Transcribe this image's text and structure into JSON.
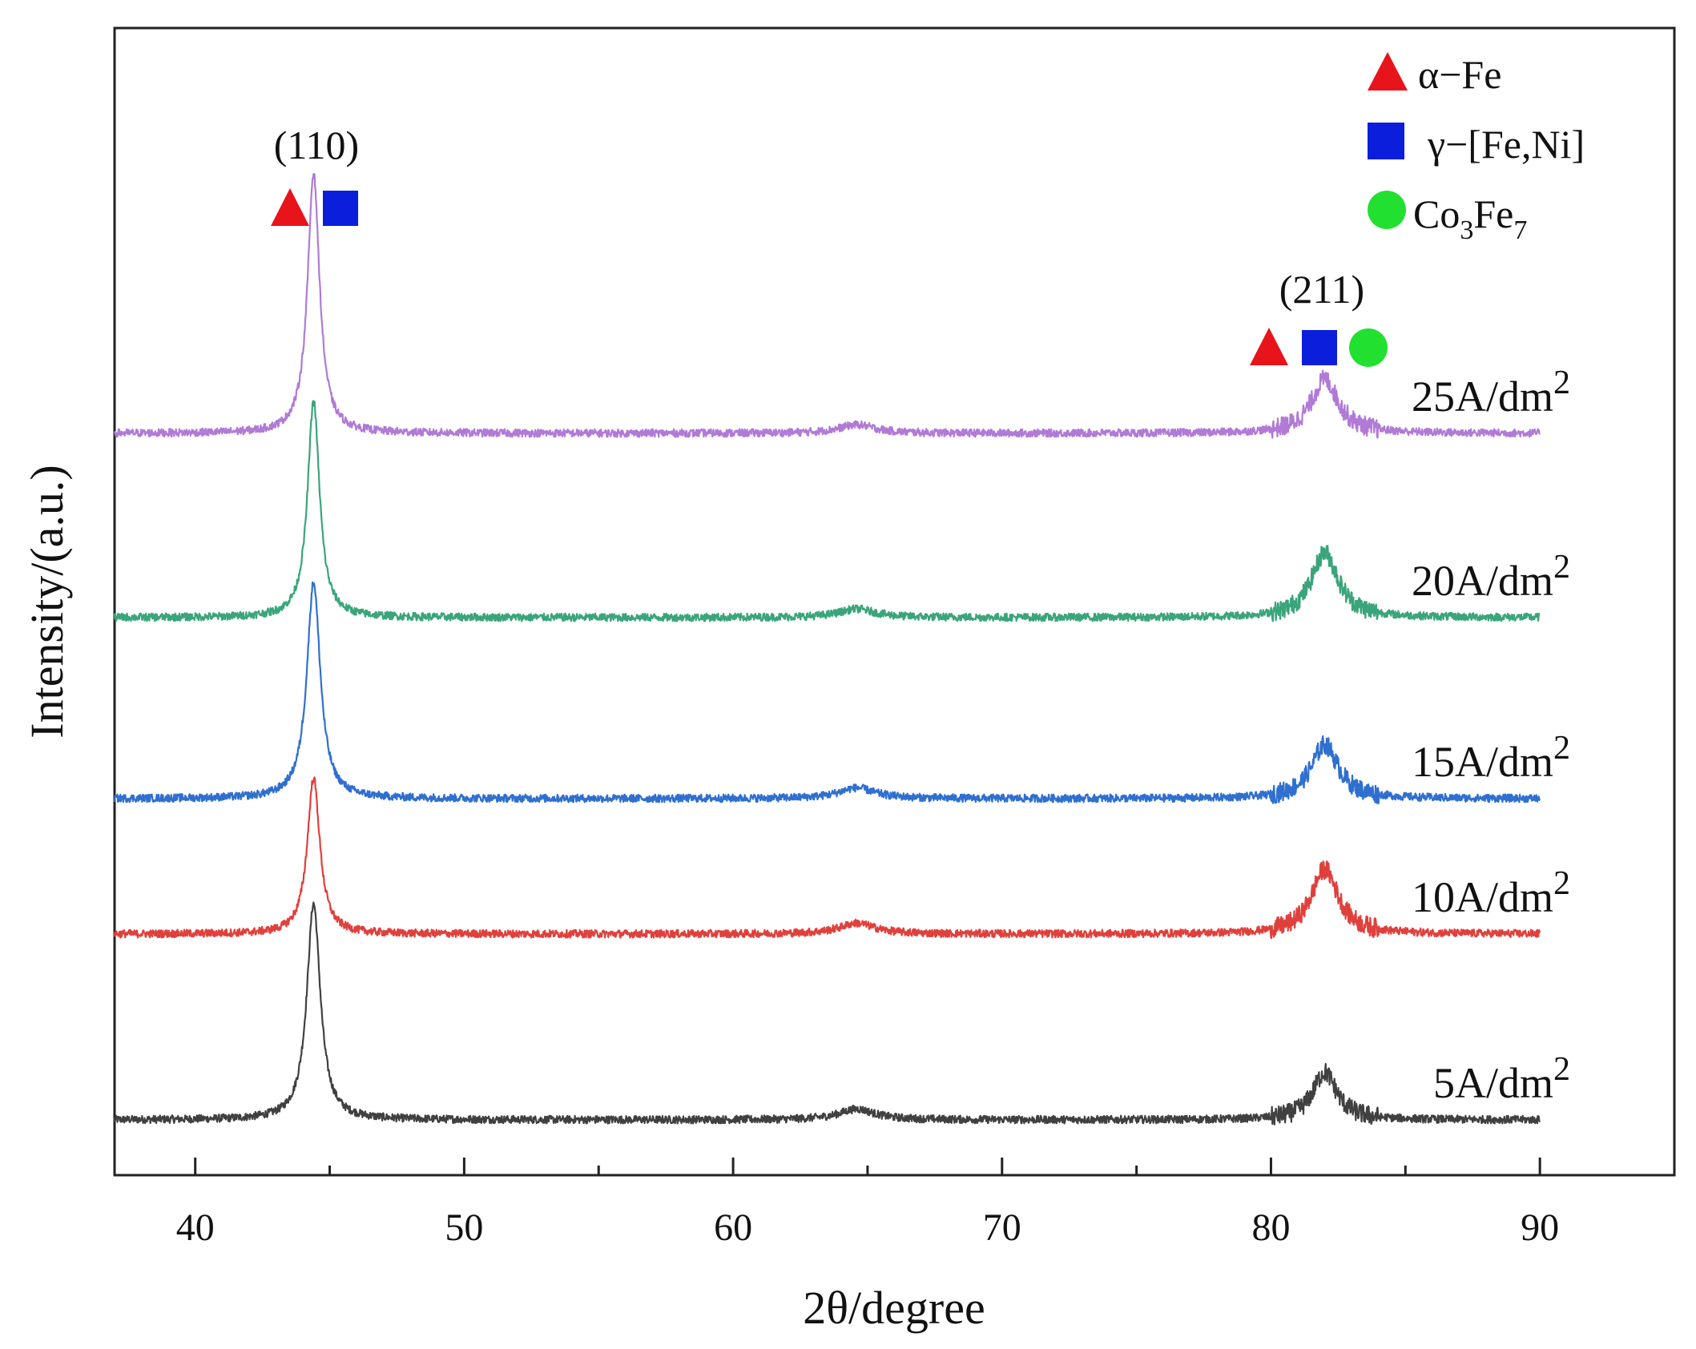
{
  "chart_data": {
    "type": "line",
    "title": "",
    "xlabel": "2θ/degree",
    "ylabel": "Intensity/(a.u.)",
    "xlim": [
      37,
      95
    ],
    "x_ticks": [
      "40",
      "50",
      "60",
      "70",
      "80",
      "90"
    ],
    "x_range": [
      37,
      90
    ],
    "peak_positions": [
      44.4,
      64.6,
      82.0
    ],
    "series": [
      {
        "name": "5A/dm2",
        "label": "5A/dm",
        "sup": "2",
        "color": "#404040",
        "offset": 0,
        "peaks": [
          {
            "x": 44.4,
            "h": 1.0,
            "w": 0.45
          },
          {
            "x": 64.6,
            "h": 0.05,
            "w": 1.2
          },
          {
            "x": 82.0,
            "h": 0.22,
            "w": 0.8
          }
        ]
      },
      {
        "name": "10A/dm2",
        "label": "10A/dm",
        "sup": "2",
        "color": "#e0403c",
        "offset": 1,
        "peaks": [
          {
            "x": 44.4,
            "h": 0.72,
            "w": 0.42
          },
          {
            "x": 64.6,
            "h": 0.05,
            "w": 1.2
          },
          {
            "x": 82.0,
            "h": 0.3,
            "w": 0.9
          }
        ]
      },
      {
        "name": "15A/dm2",
        "label": "15A/dm",
        "sup": "2",
        "color": "#2f6fd0",
        "offset": 2,
        "peaks": [
          {
            "x": 44.4,
            "h": 1.0,
            "w": 0.45
          },
          {
            "x": 64.6,
            "h": 0.05,
            "w": 1.2
          },
          {
            "x": 82.0,
            "h": 0.25,
            "w": 0.9
          }
        ]
      },
      {
        "name": "20A/dm2",
        "label": "20A/dm",
        "sup": "2",
        "color": "#3aa57a",
        "offset": 3,
        "peaks": [
          {
            "x": 44.4,
            "h": 1.0,
            "w": 0.4
          },
          {
            "x": 64.6,
            "h": 0.04,
            "w": 1.2
          },
          {
            "x": 82.0,
            "h": 0.3,
            "w": 0.9
          }
        ]
      },
      {
        "name": "25A/dm2",
        "label": "25A/dm",
        "sup": "2",
        "color": "#b07ad6",
        "offset": 4,
        "peaks": [
          {
            "x": 44.4,
            "h": 1.2,
            "w": 0.4
          },
          {
            "x": 64.6,
            "h": 0.04,
            "w": 1.2
          },
          {
            "x": 82.0,
            "h": 0.25,
            "w": 0.9
          }
        ]
      }
    ],
    "annotations": {
      "plane_110": "(110)",
      "plane_211": "(211)"
    },
    "legend": [
      {
        "marker": "triangle",
        "color": "#e8141c",
        "label": "α−Fe"
      },
      {
        "marker": "square",
        "color": "#0a1edc",
        "label": "γ−[Fe,Ni]"
      },
      {
        "marker": "circle",
        "color": "#22e030",
        "label": "Co",
        "sub1": "3",
        "label2": "Fe",
        "sub2": "7"
      }
    ],
    "legend_position": "top-right"
  }
}
